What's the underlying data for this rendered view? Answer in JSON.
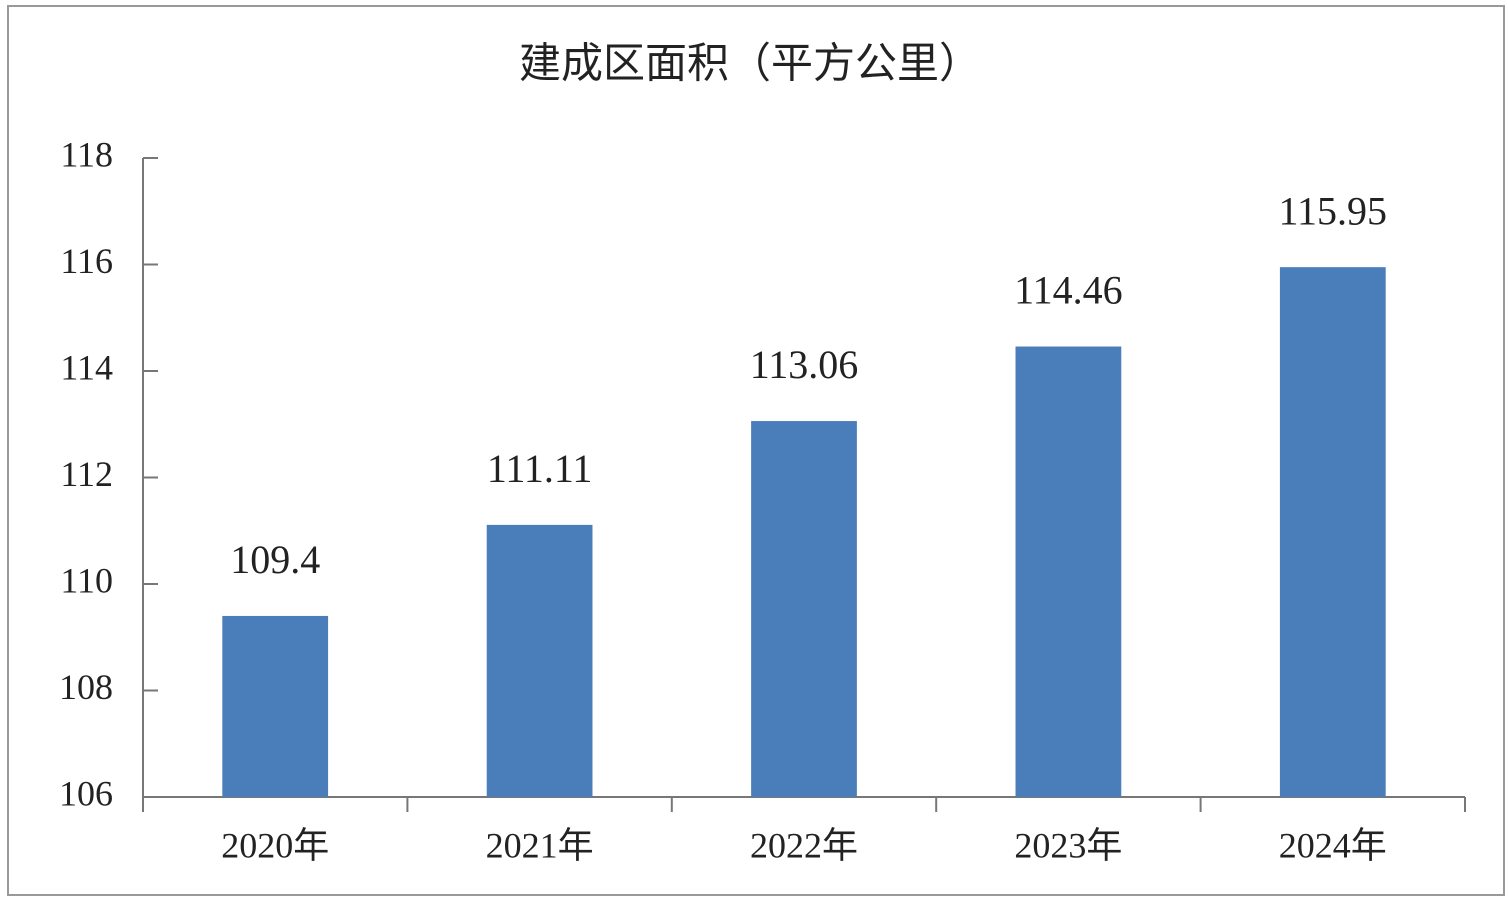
{
  "chart_data": {
    "type": "bar",
    "title": "建成区面积（平方公里）",
    "categories": [
      "2020年",
      "2021年",
      "2022年",
      "2023年",
      "2024年"
    ],
    "values": [
      109.4,
      111.11,
      113.06,
      114.46,
      115.95
    ],
    "color": "#4a7ebb",
    "ylim": [
      106,
      118
    ],
    "yticks": [
      106,
      108,
      110,
      112,
      114,
      116,
      118
    ],
    "grid": false
  }
}
